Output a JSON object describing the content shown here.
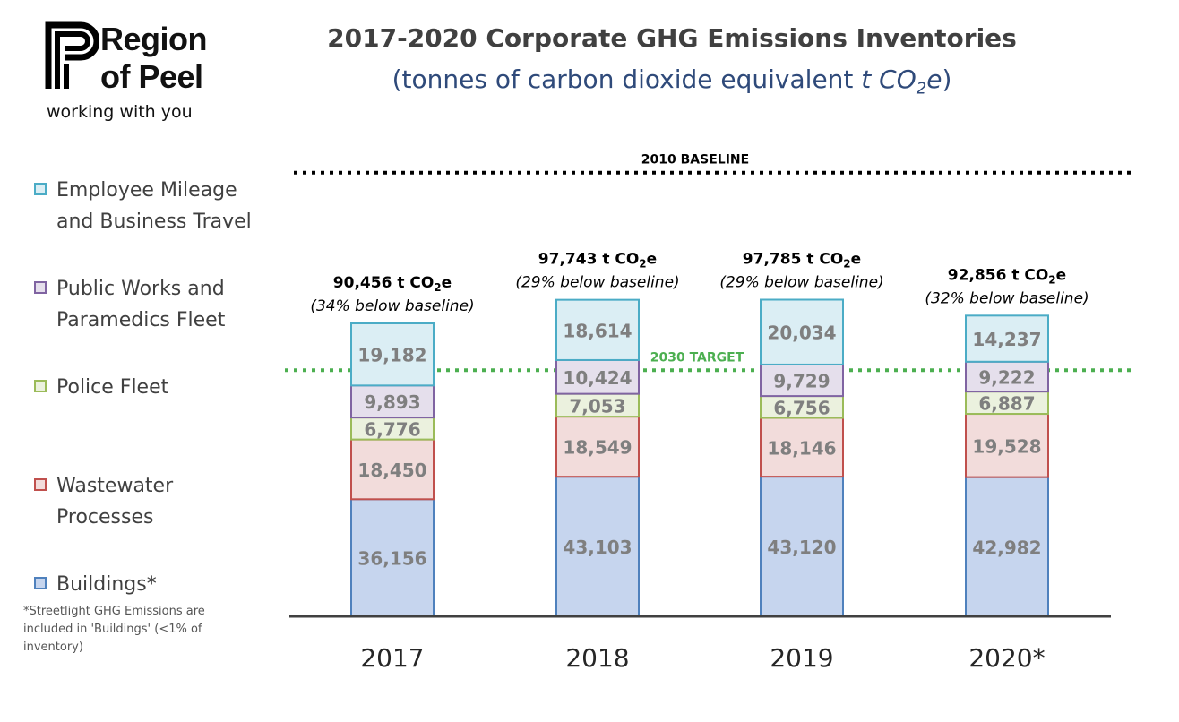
{
  "logo": {
    "line1": "Region",
    "line2": "of Peel",
    "tagline": "working with you"
  },
  "title": "2017-2020 Corporate GHG Emissions Inventories",
  "subtitle": {
    "main": "(tonnes of carbon dioxide equivalent ",
    "unit": "t CO",
    "unit_sub": "2",
    "unit_tail": "e",
    "closing": ")"
  },
  "legend": [
    {
      "label": "Employee Mileage\nand Business Travel",
      "border": "#4bacc6",
      "fill": "#dbeef4"
    },
    {
      "label": "Public Works and\nParamedics Fleet",
      "border": "#8064a2",
      "fill": "#e5dfec"
    },
    {
      "label": "Police Fleet",
      "border": "#9bbb59",
      "fill": "#ebf1de"
    },
    {
      "label": "Wastewater\nProcesses",
      "border": "#c0504d",
      "fill": "#f2dcdb"
    },
    {
      "label": "Buildings*",
      "border": "#4f81bd",
      "fill": "#c6d5ee"
    }
  ],
  "footnote": "*Streetlight GHG Emissions are included in 'Buildings' (<1% of inventory)",
  "chart_data": {
    "type": "bar",
    "stacked": true,
    "categories": [
      "2017",
      "2018",
      "2019",
      "2020*"
    ],
    "series": [
      {
        "name": "Buildings*",
        "values": [
          36156,
          43103,
          43120,
          42982
        ],
        "fill": "#c6d5ee",
        "border": "#4f81bd"
      },
      {
        "name": "Wastewater Processes",
        "values": [
          18450,
          18549,
          18146,
          19528
        ],
        "fill": "#f2dcdb",
        "border": "#c0504d"
      },
      {
        "name": "Police Fleet",
        "values": [
          6776,
          7053,
          6756,
          6887
        ],
        "fill": "#ebf1de",
        "border": "#9bbb59"
      },
      {
        "name": "Public Works and Paramedics Fleet",
        "values": [
          9893,
          10424,
          9729,
          9222
        ],
        "fill": "#e5dfec",
        "border": "#8064a2"
      },
      {
        "name": "Employee Mileage and Business Travel",
        "values": [
          19182,
          18614,
          20034,
          14237
        ],
        "fill": "#dbeef4",
        "border": "#4bacc6"
      }
    ],
    "value_labels": [
      [
        "36,156",
        "18,450",
        "6,776",
        "9,893",
        "19,182"
      ],
      [
        "43,103",
        "18,549",
        "7,053",
        "10,424",
        "18,614"
      ],
      [
        "43,120",
        "18,146",
        "6,756",
        "9,729",
        "20,034"
      ],
      [
        "42,982",
        "19,528",
        "6,887",
        "9,222",
        "14,237"
      ]
    ],
    "totals": [
      {
        "value": "90,456",
        "unit": "t CO",
        "unit_sub": "2",
        "unit_tail": "e",
        "note": "(34% below baseline)"
      },
      {
        "value": "97,743",
        "unit": "t CO",
        "unit_sub": "2",
        "unit_tail": "e",
        "note": "(29% below baseline)"
      },
      {
        "value": "97,785",
        "unit": "t CO",
        "unit_sub": "2",
        "unit_tail": "e",
        "note": "(29% below baseline)"
      },
      {
        "value": "92,856",
        "unit": "t CO",
        "unit_sub": "2",
        "unit_tail": "e",
        "note": "(32% below baseline)"
      }
    ],
    "reference_lines": [
      {
        "label": "2010 BASELINE",
        "value": 137000,
        "color": "#000000",
        "style": "dotted"
      },
      {
        "label": "2030 TARGET",
        "value": 76000,
        "color": "#4caf50",
        "style": "dotted"
      }
    ],
    "ylim": [
      0,
      160000
    ]
  }
}
